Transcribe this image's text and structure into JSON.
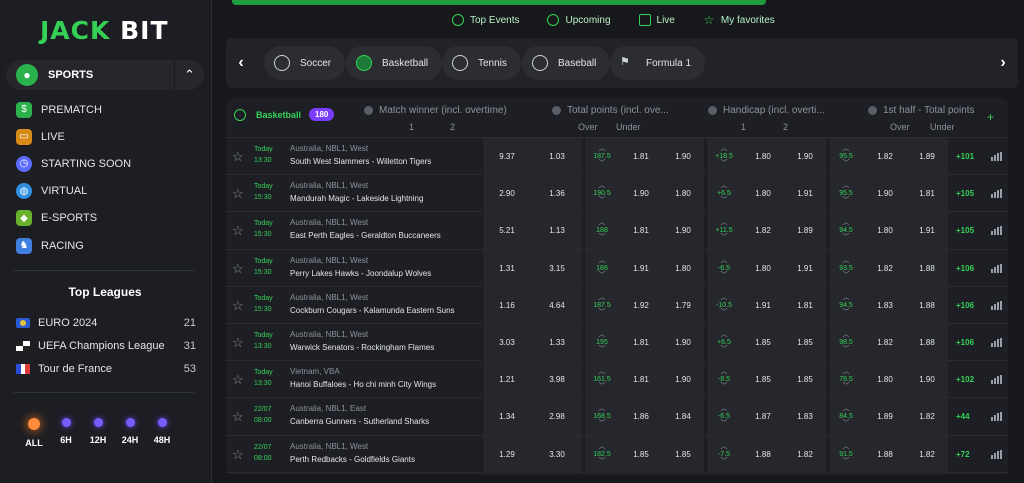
{
  "brand": {
    "logo_jack": "JACK",
    "logo_bit": "BIT"
  },
  "sidebar": {
    "sports_label": "SPORTS",
    "items": [
      {
        "label": "PREMATCH",
        "icon": "dollar-bag-icon",
        "color": "#2bb24c"
      },
      {
        "label": "LIVE",
        "icon": "tv-icon",
        "color": "#d98b1a"
      },
      {
        "label": "STARTING SOON",
        "icon": "clock-icon",
        "color": "#5b6cff"
      },
      {
        "label": "VIRTUAL",
        "icon": "globe-icon",
        "color": "#2f8fe0"
      },
      {
        "label": "E-SPORTS",
        "icon": "gamepad-icon",
        "color": "#6ab22b"
      },
      {
        "label": "RACING",
        "icon": "horse-icon",
        "color": "#3f7fe0"
      }
    ],
    "top_leagues_title": "Top Leagues",
    "leagues": [
      {
        "name": "EURO 2024",
        "count": "21"
      },
      {
        "name": "UEFA Champions League",
        "count": "31"
      },
      {
        "name": "Tour de France",
        "count": "53"
      }
    ],
    "time_filters": [
      "ALL",
      "6H",
      "12H",
      "24H",
      "48H"
    ]
  },
  "top_tabs": [
    "Top Events",
    "Upcoming",
    "Live",
    "My favorites"
  ],
  "sports": [
    "Soccer",
    "Basketball",
    "Tennis",
    "Baseball",
    "Formula 1"
  ],
  "table": {
    "sport": "Basketball",
    "count": "180",
    "markets": [
      "Match winner (incl. overtime)",
      "Total points (incl. ove...",
      "Handicap (incl. overti...",
      "1st half - Total points"
    ],
    "sub_labels": {
      "one": "1",
      "two": "2",
      "over": "Over",
      "under": "Under"
    },
    "rows": [
      {
        "day": "Today",
        "time": "13:30",
        "league": "Australia, NBL1, West",
        "teams": "South West Slammers  -  Willetton Tigers",
        "o1": "9.37",
        "o2": "1.03",
        "tot": "187.5",
        "ov": "1.81",
        "un": "1.90",
        "hc": "+18.5",
        "h1": "1.80",
        "h2": "1.90",
        "half": "95.5",
        "hov": "1.82",
        "hun": "1.89",
        "more": "+101"
      },
      {
        "day": "Today",
        "time": "15:30",
        "league": "Australia, NBL1, West",
        "teams": "Mandurah Magic  -  Lakeside Lightning",
        "o1": "2.90",
        "o2": "1.36",
        "tot": "190.5",
        "ov": "1.90",
        "un": "1.80",
        "hc": "+6.5",
        "h1": "1.80",
        "h2": "1.91",
        "half": "95.5",
        "hov": "1.90",
        "hun": "1.81",
        "more": "+105"
      },
      {
        "day": "Today",
        "time": "15:30",
        "league": "Australia, NBL1, West",
        "teams": "East Perth Eagles  -  Geraldton Buccaneers",
        "o1": "5.21",
        "o2": "1.13",
        "tot": "188",
        "ov": "1.81",
        "un": "1.90",
        "hc": "+11.5",
        "h1": "1.82",
        "h2": "1.89",
        "half": "94.5",
        "hov": "1.80",
        "hun": "1.91",
        "more": "+105"
      },
      {
        "day": "Today",
        "time": "15:30",
        "league": "Australia, NBL1, West",
        "teams": "Perry Lakes Hawks  -  Joondalup Wolves",
        "o1": "1.31",
        "o2": "3.15",
        "tot": "186",
        "ov": "1.91",
        "un": "1.80",
        "hc": "-6.5",
        "h1": "1.80",
        "h2": "1.91",
        "half": "93.5",
        "hov": "1.82",
        "hun": "1.88",
        "more": "+106"
      },
      {
        "day": "Today",
        "time": "15:30",
        "league": "Australia, NBL1, West",
        "teams": "Cockburn Cougars  -  Kalamunda Eastern Suns",
        "o1": "1.16",
        "o2": "4.64",
        "tot": "187.5",
        "ov": "1.92",
        "un": "1.79",
        "hc": "-10.5",
        "h1": "1.91",
        "h2": "1.81",
        "half": "94.5",
        "hov": "1.83",
        "hun": "1.88",
        "more": "+106"
      },
      {
        "day": "Today",
        "time": "13:30",
        "league": "Australia, NBL1, West",
        "teams": "Warwick Senators  -  Rockingham Flames",
        "o1": "3.03",
        "o2": "1.33",
        "tot": "195",
        "ov": "1.81",
        "un": "1.90",
        "hc": "+6.5",
        "h1": "1.85",
        "h2": "1.85",
        "half": "98.5",
        "hov": "1.82",
        "hun": "1.88",
        "more": "+106"
      },
      {
        "day": "Today",
        "time": "13:30",
        "league": "Vietnam, VBA",
        "teams": "Hanoi Buffaloes  -  Ho chi minh City Wings",
        "o1": "1.21",
        "o2": "3.98",
        "tot": "161.5",
        "ov": "1.81",
        "un": "1.90",
        "hc": "-8.5",
        "h1": "1.85",
        "h2": "1.85",
        "half": "78.5",
        "hov": "1.80",
        "hun": "1.90",
        "more": "+102"
      },
      {
        "day": "22/07",
        "time": "08:00",
        "league": "Australia, NBL1, East",
        "teams": "Canberra Gunners  -  Sutherland Sharks",
        "o1": "1.34",
        "o2": "2.98",
        "tot": "168.5",
        "ov": "1.86",
        "un": "1.84",
        "hc": "-6.5",
        "h1": "1.87",
        "h2": "1.83",
        "half": "84.5",
        "hov": "1.89",
        "hun": "1.82",
        "more": "+44"
      },
      {
        "day": "22/07",
        "time": "08:00",
        "league": "Australia, NBL1, West",
        "teams": "Perth Redbacks  -  Goldfields Giants",
        "o1": "1.29",
        "o2": "3.30",
        "tot": "182.5",
        "ov": "1.85",
        "un": "1.85",
        "hc": "-7.5",
        "h1": "1.88",
        "h2": "1.82",
        "half": "91.5",
        "hov": "1.88",
        "hun": "1.82",
        "more": "+72"
      }
    ]
  }
}
